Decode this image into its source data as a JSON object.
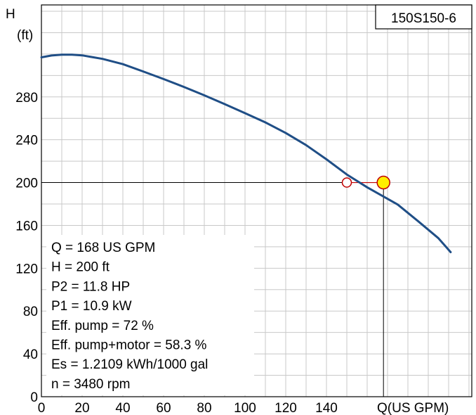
{
  "chart_data": {
    "type": "line",
    "model": "150S150-6",
    "ylabel_line1": "H",
    "ylabel_line2": "(ft)",
    "xlabel": "Q(US GPM)",
    "xlim": [
      0,
      205
    ],
    "ylim": [
      0,
      360
    ],
    "x_ticks": [
      0,
      20,
      40,
      60,
      80,
      100,
      120,
      140
    ],
    "y_ticks": [
      0,
      40,
      80,
      120,
      160,
      200,
      240,
      280
    ],
    "grid": true,
    "series": [
      {
        "color": "#1f4e86",
        "x": [
          0,
          5,
          10,
          15,
          20,
          30,
          40,
          50,
          60,
          70,
          80,
          90,
          100,
          110,
          120,
          130,
          140,
          150,
          160,
          168,
          175,
          185,
          195,
          201
        ],
        "y": [
          317,
          318.7,
          319.4,
          319.5,
          318.8,
          315.5,
          310.6,
          303.8,
          296.7,
          289.3,
          281.5,
          273.3,
          264.8,
          256.2,
          246.3,
          235,
          221.7,
          207.5,
          195.6,
          200,
          179.5,
          164,
          148,
          135
        ]
      }
    ],
    "duty_point": {
      "x": 168,
      "y": 200,
      "color": "#ffee00"
    },
    "required_point": {
      "x": 150,
      "y": 200,
      "color": "#c00000"
    },
    "info_lines": [
      "Q = 168 US GPM",
      "H = 200 ft",
      "P2 = 11.8 HP",
      "P1 = 10.9 kW",
      "Eff. pump = 72 %",
      "Eff. pump+motor = 58.3 %",
      "Es = 1.2109 kWh/1000 gal",
      "n = 3480 rpm"
    ]
  }
}
